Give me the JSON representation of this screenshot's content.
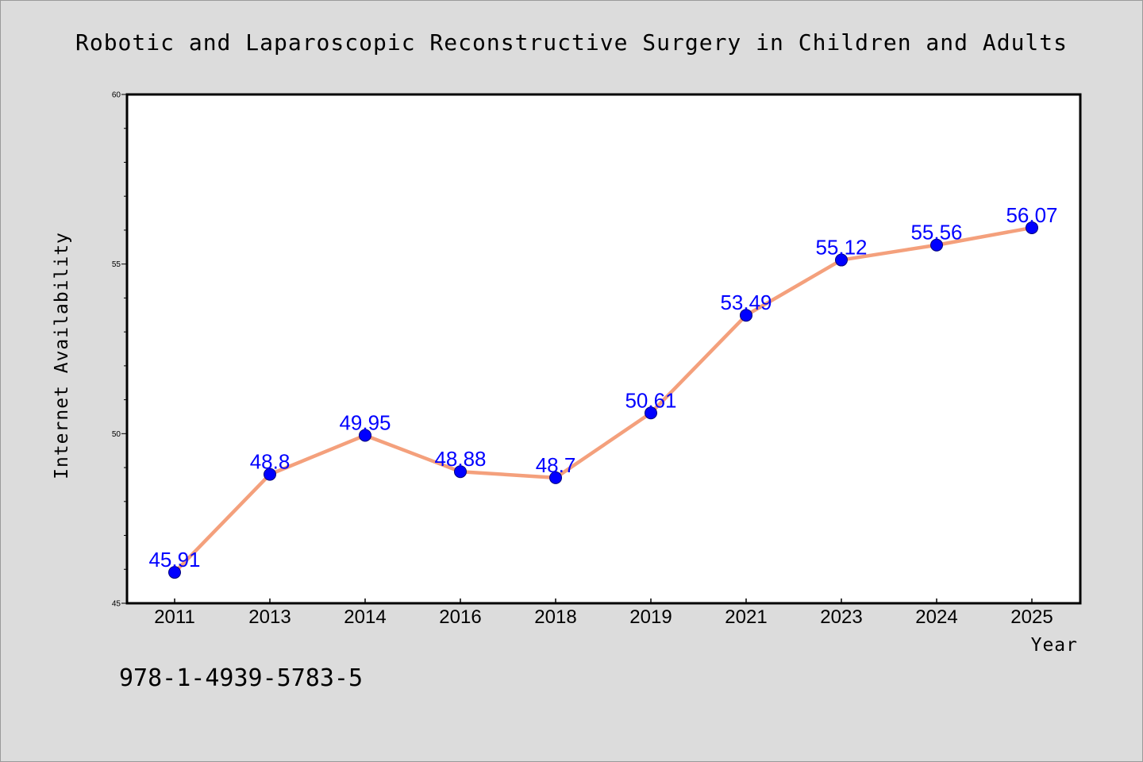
{
  "chart_data": {
    "type": "line",
    "title": "Robotic and Laparoscopic Reconstructive Surgery in Children and Adults",
    "xlabel": "Year",
    "ylabel": "Internet Availability",
    "categories": [
      "2011",
      "2013",
      "2014",
      "2016",
      "2018",
      "2019",
      "2021",
      "2023",
      "2024",
      "2025"
    ],
    "series": [
      {
        "values": [
          45.91,
          48.8,
          49.95,
          48.88,
          48.7,
          50.61,
          53.49,
          55.12,
          55.56,
          56.07
        ],
        "labels": [
          "45.91",
          "48.8",
          "49.95",
          "48.88",
          "48.7",
          "50.61",
          "53.49",
          "55.12",
          "55.56",
          "56.07"
        ]
      }
    ],
    "ylim": [
      45,
      60
    ],
    "yticks": [
      "45",
      "50",
      "55",
      "60"
    ],
    "grid": false,
    "line_color": "#f4a07c",
    "marker_color": "#0000ff",
    "label_color": "#0000ff"
  },
  "footer": {
    "isbn": "978-1-4939-5783-5"
  }
}
